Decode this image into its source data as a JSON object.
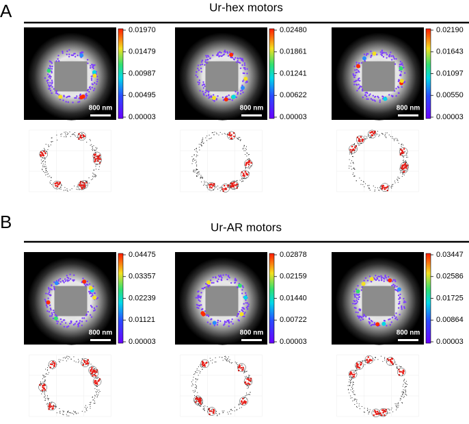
{
  "panels": [
    {
      "label": "A",
      "title": "Ur-hex motors",
      "images": [
        {
          "colorbar": [
            "0.01970",
            "0.01479",
            "0.00987",
            "0.00495",
            "0.00003"
          ],
          "scale": "800 nm"
        },
        {
          "colorbar": [
            "0.02480",
            "0.01861",
            "0.01241",
            "0.00622",
            "0.00003"
          ],
          "scale": "800 nm"
        },
        {
          "colorbar": [
            "0.02190",
            "0.01643",
            "0.01097",
            "0.00550",
            "0.00003"
          ],
          "scale": "800 nm"
        }
      ]
    },
    {
      "label": "B",
      "title": "Ur-AR motors",
      "images": [
        {
          "colorbar": [
            "0.04475",
            "0.03357",
            "0.02239",
            "0.01121",
            "0.00003"
          ],
          "scale": "800 nm"
        },
        {
          "colorbar": [
            "0.02878",
            "0.02159",
            "0.01440",
            "0.00722",
            "0.00003"
          ],
          "scale": "800 nm"
        },
        {
          "colorbar": [
            "0.03447",
            "0.02586",
            "0.01725",
            "0.00864",
            "0.00003"
          ],
          "scale": "800 nm"
        }
      ]
    }
  ]
}
